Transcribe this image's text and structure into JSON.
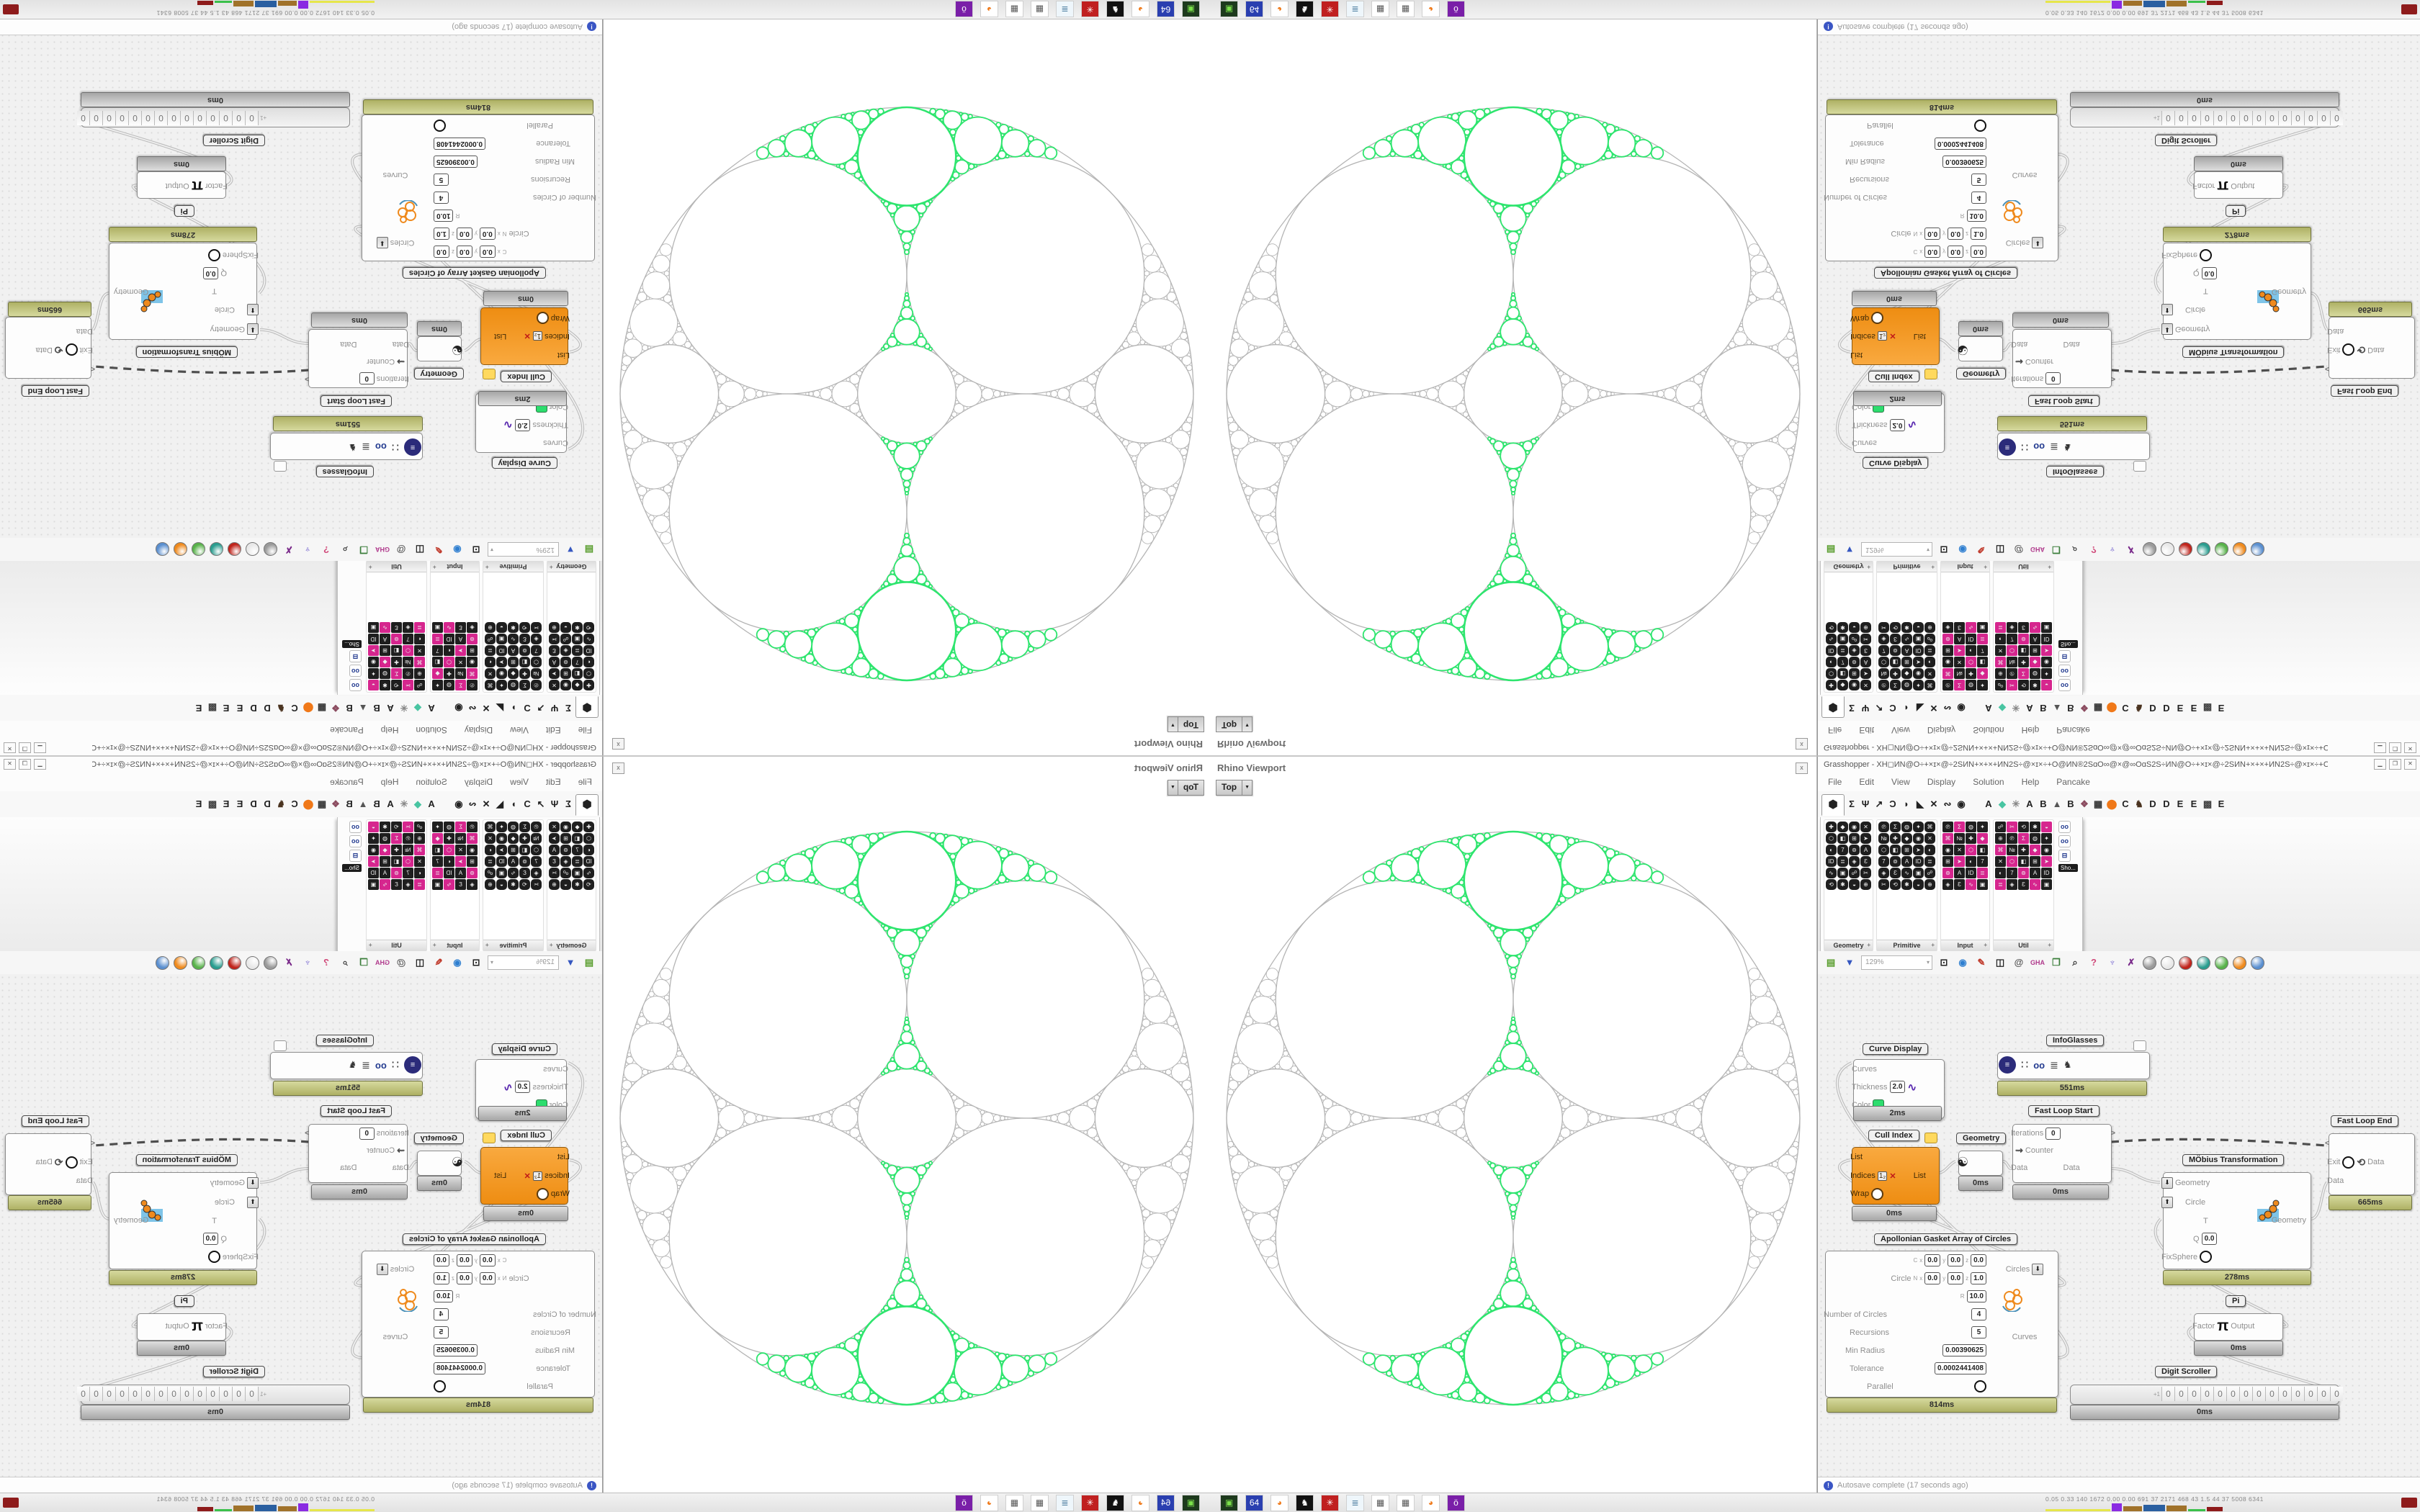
{
  "viewport": {
    "title": "Rhino Viewport",
    "view_label": "Top",
    "close_label": "x"
  },
  "grasshopper": {
    "window_title": "Grasshopper - XH◻ИN@O÷+×ɪ×@÷2SИN+×+×+ИN2S÷@×ɪ×÷+O@ИN®2SɑO∞@×@∞OɑS2S÷ИN@O÷+×ɪ×@÷2SИN+×+×+ИN2S÷@×ɪ×÷+O@ИN*",
    "menus": [
      "File",
      "Edit",
      "View",
      "Display",
      "Solution",
      "Help",
      "Pancake"
    ],
    "tabs_left": [
      "⬢",
      "Σ",
      "Ψ",
      "↗",
      "Ɔ",
      "◗",
      "◣",
      "✕",
      "∾",
      "◉"
    ],
    "tabs_right": [
      {
        "g": "A",
        "c": "#222222"
      },
      {
        "g": "◆",
        "c": "#49c5a2"
      },
      {
        "g": "✳",
        "c": "#888888"
      },
      {
        "g": "A",
        "c": "#222222"
      },
      {
        "g": "B",
        "c": "#222222"
      },
      {
        "g": "▲",
        "c": "#555555"
      },
      {
        "g": "B",
        "c": "#222222"
      },
      {
        "g": "❖",
        "c": "#8a4a5e"
      },
      {
        "g": "▦",
        "c": "#333333"
      },
      {
        "g": "⬤",
        "c": "#f07818"
      },
      {
        "g": "C",
        "c": "#222222"
      },
      {
        "g": "♞",
        "c": "#4a3320"
      },
      {
        "g": "D",
        "c": "#222222"
      },
      {
        "g": "D",
        "c": "#222222"
      },
      {
        "g": "E",
        "c": "#222222"
      },
      {
        "g": "E",
        "c": "#222222"
      },
      {
        "g": "▩",
        "c": "#444444"
      },
      {
        "g": "E",
        "c": "#222222"
      }
    ],
    "panel": {
      "categories": [
        {
          "label": "Geometry",
          "cols": 4,
          "rows": 6,
          "style": "hex"
        },
        {
          "label": "Primitive",
          "cols": 5,
          "rows": 6,
          "style": "hex"
        },
        {
          "label": "Input",
          "cols": 4,
          "rows": 6,
          "style": "color"
        },
        {
          "label": "Util",
          "cols": 5,
          "rows": 6,
          "style": "color"
        }
      ],
      "icon_glyphs": [
        "✚",
        "◆",
        "◉",
        "✕",
        "⬡",
        "◧",
        "⊞",
        "➤",
        "◐",
        "7",
        "⊚",
        "A",
        "ID",
        "≣",
        "◈",
        "Ɛ",
        "∿",
        "▣",
        "☍",
        "✂",
        "⟲",
        "✱",
        "◒",
        "⊕",
        "℗",
        "Σ",
        "◍",
        "✦",
        "⌘",
        "№"
      ],
      "icon_colors": [
        "#1e1e1e",
        "#1e1e1e",
        "#d6268e",
        "#1e1e1e",
        "#f5a623",
        "#3bb54a",
        "#1e1e1e",
        "#2196f3",
        "#1e1e1e",
        "#8e24aa",
        "#1e1e1e",
        "#c62828"
      ],
      "strip_icons": [
        "oo",
        "oo",
        "⊟"
      ],
      "strip_tooltip": "Sho..."
    },
    "toolbar": {
      "zoom": "129%",
      "icons_left": [
        {
          "g": "▤",
          "c": "#5a9e2f"
        },
        {
          "g": "▼",
          "c": "#3557c0"
        }
      ],
      "icons_mid": [
        {
          "g": "⊡",
          "c": "#222222"
        },
        {
          "g": "◉",
          "c": "#2f7fd0"
        },
        {
          "g": "✎",
          "c": "#c03a2b"
        },
        {
          "g": "◫",
          "c": "#222222"
        },
        {
          "g": "@",
          "c": "#555555"
        },
        {
          "g": "GHA",
          "c": "#b03a8c"
        },
        {
          "g": "❐",
          "c": "#3a7d3a"
        },
        {
          "g": "⌕",
          "c": "#333333"
        },
        {
          "g": "?",
          "c": "#d04a7a"
        },
        {
          "g": "♆",
          "c": "#7a6ad0"
        },
        {
          "g": "✗",
          "c": "#7a2a8a"
        }
      ],
      "balls": [
        "#9a9a9a",
        "#e8e8e8",
        "#c0241c",
        "#2a9d8f",
        "#58b24a",
        "#ef8a1d",
        "#5a8fd0"
      ]
    },
    "status": {
      "text": "Autosave complete (17 seconds ago)",
      "icon_glyph": "!"
    },
    "nodes": {
      "curve_display": {
        "label": "Curve Display",
        "in1": "Curves",
        "in2": "Thickness",
        "in3": "Color",
        "thickness": "2.0",
        "time": "2ms"
      },
      "infoglasses": {
        "label": "InfoGlasses",
        "time": "551ms"
      },
      "fast_loop_start": {
        "label": "Fast Loop Start",
        "iterations_label": "Iterations",
        "iterations": "0",
        "counter_label": "Counter",
        "data_label": "Data",
        "out_symbol": ">",
        "time": "0ms"
      },
      "cull_index": {
        "label": "Cull Index",
        "in1": "List",
        "in2": "Indices",
        "in3": "Wrap",
        "out": "List",
        "time": "0ms"
      },
      "geometry": {
        "label": "Geometry",
        "time": "0ms"
      },
      "apollonian": {
        "label": "Apollonian Gasket Array of Circles",
        "c_label": "C",
        "circle_label": "Circle",
        "n_label": "N",
        "x_label": "x",
        "y_label": "y",
        "z_label": "z",
        "r_label": "R",
        "c_x": "0.0",
        "c_y": "0.0",
        "c_z": "0.0",
        "n_x": "0.0",
        "n_y": "0.0",
        "n_z": "1.0",
        "r_val": "10.0",
        "num_label": "Number of Circles",
        "num": "4",
        "rec_label": "Recursions",
        "rec": "5",
        "minr_label": "Min Radius",
        "minr": "0.00390625",
        "tol_label": "Tolerance",
        "tol": "0.0002441408",
        "par_label": "Parallel",
        "out1": "Circles",
        "out2": "Curves",
        "time": "814ms"
      },
      "mobius": {
        "label": "MÖbius Transformation",
        "in1": "Geometry",
        "in2": "Circle",
        "in3": "T",
        "in4": "Q",
        "q": "0.0",
        "in5": "FixSphere",
        "out": "Geometry",
        "time": "278ms"
      },
      "fast_loop_end": {
        "label": "Fast Loop End",
        "in_symbol": "<",
        "exit_label": "Exit",
        "data_label": "Data",
        "time": "665ms"
      },
      "pi": {
        "label": "Pi",
        "factor_label": "Factor",
        "symbol": "π",
        "output_label": "Output",
        "time": "0ms"
      },
      "digit_scroller": {
        "label": "Digit Scroller",
        "prefix": "+1",
        "digits": "00000000000000",
        "time": "0ms"
      }
    }
  },
  "taskbar": {
    "icons": [
      {
        "g": "▣",
        "bg": "#1d3a1d",
        "c": "#7ae04a"
      },
      {
        "g": "64",
        "bg": "#2a3fb0",
        "c": "#ffffff"
      },
      {
        "g": "◕",
        "bg": "#ffffff",
        "c": "#ef7a1a"
      },
      {
        "g": "♞",
        "bg": "#111111",
        "c": "#ffffff"
      },
      {
        "g": "✳",
        "bg": "#c02020",
        "c": "#ffffff"
      },
      {
        "g": "≣",
        "bg": "#eef6fb",
        "c": "#5a88a8"
      },
      {
        "g": "▦",
        "bg": "#ffffff",
        "c": "#555555"
      },
      {
        "g": "▦",
        "bg": "#ffffff",
        "c": "#555555"
      },
      {
        "g": "◕",
        "bg": "#ffffff",
        "c": "#ef7a1a"
      },
      {
        "g": "ö",
        "bg": "#7a1fa8",
        "c": "#ffffff"
      }
    ],
    "stats": "0.05 0.33  140  1672 0.00 0.00  691   37   2171 468   43   1.5   44    37   5008 6341",
    "spark": [
      [
        "#e6e64a",
        3,
        90
      ],
      [
        "#8a2be2",
        11,
        14
      ],
      [
        "#a0722a",
        7,
        26
      ],
      [
        "#2a5fa0",
        9,
        30
      ],
      [
        "#a0722a",
        8,
        28
      ],
      [
        "#3ac04a",
        3,
        24
      ],
      [
        "#8e1b1b",
        6,
        22
      ]
    ]
  },
  "colors": {
    "gasket_green": "#2ee56e",
    "gasket_gray": "#b5b5b5",
    "olive_bar": "#b9bc74",
    "node_orange": "#f59a28"
  }
}
